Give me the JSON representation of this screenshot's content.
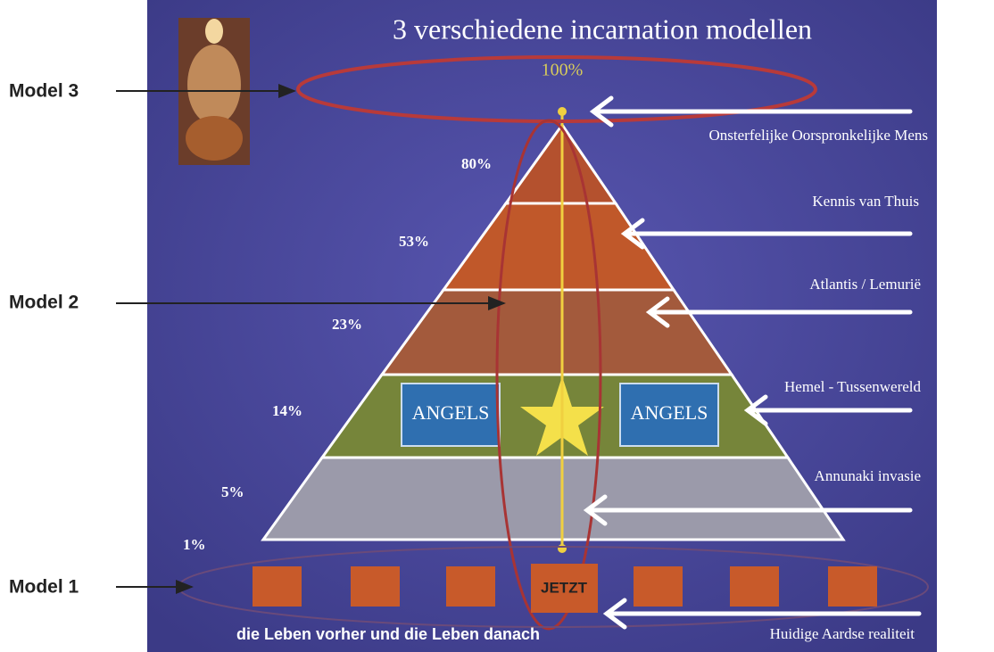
{
  "title": "3 verschiedene incarnation modellen",
  "top_label": "100%",
  "models": [
    "Model 3",
    "Model 2",
    "Model 1"
  ],
  "percentages": [
    "80%",
    "53%",
    "23%",
    "14%",
    "5%",
    "1%"
  ],
  "levels": [
    "Onsterfelijke Oorspronkelijke Mens",
    "Kennis van Thuis",
    "Atlantis / Lemurië",
    "Hemel - Tussenwereld",
    "Annunaki invasie",
    "Huidige Aardse realiteit"
  ],
  "angels": [
    "ANGELS",
    "ANGELS"
  ],
  "now_label": "JETZT",
  "caption": "die Leben vorher und die Leben danach"
}
